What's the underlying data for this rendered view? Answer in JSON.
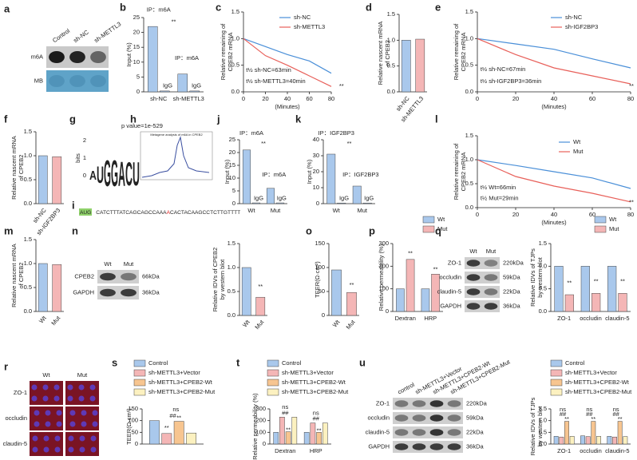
{
  "chart_data": [
    {
      "letter": "b",
      "type": "bar",
      "ylabel": [
        "Input (%)"
      ],
      "categories": [
        "sh-NC",
        "sh-METTL3"
      ],
      "series": [
        {
          "color": "#a9c8ec",
          "values": [
            22,
            6
          ]
        },
        {
          "color": "#a9c8ec",
          "values": [
            0.3,
            0.3
          ]
        }
      ],
      "ylim": [
        0,
        25
      ],
      "yticks": [
        0,
        5,
        10,
        15,
        20,
        25
      ],
      "annotations": [
        "IP：m6A",
        "IP：m6A",
        "IgG",
        "IgG",
        "**"
      ]
    },
    {
      "letter": "c",
      "type": "line",
      "ylabel": [
        "Relative remaining of",
        "CPEB2 mRNA"
      ],
      "xlabel": "(Minutes)",
      "x": [
        0,
        20,
        40,
        60,
        80
      ],
      "xlim": [
        0,
        80
      ],
      "xticks": [
        0,
        20,
        40,
        60,
        80
      ],
      "series": [
        {
          "name": "sh-NC",
          "color": "#4a8fd8",
          "values": [
            1,
            0.85,
            0.7,
            0.58,
            0.35
          ]
        },
        {
          "name": "sh-METTL3",
          "color": "#e8605a",
          "values": [
            1,
            0.68,
            0.5,
            0.3,
            0.1
          ]
        }
      ],
      "ylim": [
        0,
        1.5
      ],
      "yticks": [
        {
          "value": 0,
          "label": "0.0"
        },
        0.5,
        {
          "value": 1,
          "label": "1.0"
        },
        1.5
      ],
      "annotations": [
        "t½ sh-NC=63min",
        "t½ sh-METTL3=40min",
        "**"
      ]
    },
    {
      "letter": "d",
      "type": "bar",
      "ylabel": [
        "Relative nascent mRNA",
        "of CPEB2"
      ],
      "categories": [
        "sh-NC",
        "sh-METTL3"
      ],
      "series": [
        {
          "colors": [
            "#a9c8ec",
            "#f4b6b6"
          ],
          "values": [
            1,
            1.02
          ]
        }
      ],
      "ylim": [
        0,
        1.5
      ],
      "yticks": [
        {
          "value": 0,
          "label": "0.0"
        },
        0.5,
        {
          "value": 1,
          "label": "1.0"
        },
        1.5
      ],
      "annotations": []
    },
    {
      "letter": "e",
      "type": "line",
      "ylabel": [
        "Relative remaining of",
        "CPEB2 mRNA"
      ],
      "xlabel": "(Minutes)",
      "x": [
        0,
        20,
        40,
        60,
        80
      ],
      "xlim": [
        0,
        80
      ],
      "xticks": [
        0,
        20,
        40,
        60,
        80
      ],
      "series": [
        {
          "name": "sh-NC",
          "color": "#4a8fd8",
          "values": [
            1,
            0.9,
            0.8,
            0.62,
            0.45
          ]
        },
        {
          "name": "sh-IGF2BP3",
          "color": "#e8605a",
          "values": [
            1,
            0.7,
            0.45,
            0.3,
            0.15
          ]
        }
      ],
      "ylim": [
        0,
        1.5
      ],
      "yticks": [
        {
          "value": 0,
          "label": "0.0"
        },
        0.5,
        {
          "value": 1,
          "label": "1.0"
        },
        1.5
      ],
      "annotations": [
        "t½ sh-NC=67min",
        "t½ sh-IGF2BP3=36min",
        "**"
      ]
    },
    {
      "letter": "f",
      "type": "bar",
      "ylabel": [
        "Relative nascent mRNA",
        "of CPEB2"
      ],
      "categories": [
        "sh-NC",
        "sh-IGF2BP3"
      ],
      "series": [
        {
          "colors": [
            "#a9c8ec",
            "#f4b6b6"
          ],
          "values": [
            1,
            0.98
          ]
        }
      ],
      "ylim": [
        0,
        1.5
      ],
      "yticks": [
        {
          "value": 0,
          "label": "0.0"
        },
        0.5,
        {
          "value": 1,
          "label": "1.0"
        },
        1.5
      ],
      "annotations": []
    },
    {
      "letter": "j",
      "type": "bar",
      "ylabel": [
        "Input (%)"
      ],
      "categories": [
        "Wt",
        "Mut"
      ],
      "series": [
        {
          "color": "#a9c8ec",
          "values": [
            21,
            6
          ]
        },
        {
          "color": "#a9c8ec",
          "values": [
            0.3,
            0.3
          ]
        }
      ],
      "ylim": [
        0,
        25
      ],
      "yticks": [
        0,
        5,
        10,
        15,
        20,
        25
      ],
      "annotations": [
        "IP：m6A",
        "IP：m6A",
        "IgG",
        "IgG",
        "**"
      ]
    },
    {
      "letter": "k",
      "type": "bar",
      "ylabel": [
        "Input (%)"
      ],
      "categories": [
        "Wt",
        "Mut"
      ],
      "series": [
        {
          "color": "#a9c8ec",
          "values": [
            31,
            11
          ]
        },
        {
          "color": "#a9c8ec",
          "values": [
            0.4,
            0.4
          ]
        }
      ],
      "ylim": [
        0,
        40
      ],
      "yticks": [
        0,
        10,
        20,
        30,
        40
      ],
      "annotations": [
        "IP：IGF2BP3",
        "IP：IGF2BP3",
        "IgG",
        "IgG",
        "**"
      ]
    },
    {
      "letter": "l",
      "type": "line",
      "ylabel": [
        "Relative remaining of",
        "CPEB2 mRNA"
      ],
      "xlabel": "(Minutes)",
      "x": [
        0,
        20,
        40,
        60,
        80
      ],
      "xlim": [
        0,
        80
      ],
      "xticks": [
        0,
        20,
        40,
        60,
        80
      ],
      "series": [
        {
          "name": "Wt",
          "color": "#4a8fd8",
          "values": [
            1,
            0.88,
            0.75,
            0.62,
            0.4
          ]
        },
        {
          "name": "Mut",
          "color": "#e8605a",
          "values": [
            1,
            0.65,
            0.45,
            0.3,
            0.12
          ]
        }
      ],
      "ylim": [
        0,
        1.5
      ],
      "yticks": [
        {
          "value": 0,
          "label": "0.0"
        },
        0.5,
        {
          "value": 1,
          "label": "1.0"
        },
        1.5
      ],
      "annotations": [
        "t½ Wt=66min",
        "t½ Mut=29min",
        "**"
      ]
    },
    {
      "letter": "m",
      "type": "bar",
      "ylabel": [
        "Relative nascent mRNA",
        "of CPEB2"
      ],
      "categories": [
        "Wt",
        "Mut"
      ],
      "series": [
        {
          "colors": [
            "#a9c8ec",
            "#f4b6b6"
          ],
          "values": [
            1,
            0.98
          ]
        }
      ],
      "ylim": [
        0,
        1.5
      ],
      "yticks": [
        {
          "value": 0,
          "label": "0.0"
        },
        0.5,
        {
          "value": 1,
          "label": "1.0"
        },
        1.5
      ],
      "annotations": []
    },
    {
      "letter": "n",
      "type": "bar",
      "ylabel": [
        "Relative IDVs of CPEB2",
        "by western blot"
      ],
      "categories": [
        "Wt",
        "Mut"
      ],
      "series": [
        {
          "colors": [
            "#a9c8ec",
            "#f4b6b6"
          ],
          "values": [
            1,
            0.38
          ]
        }
      ],
      "ylim": [
        0,
        1.5
      ],
      "yticks": [
        {
          "value": 0,
          "label": "0.0"
        },
        0.5,
        {
          "value": 1,
          "label": "1.0"
        },
        1.5
      ],
      "annotations": [
        "**"
      ]
    },
    {
      "letter": "o",
      "type": "bar",
      "ylabel": [
        "TEER(Ω·cm²)"
      ],
      "categories": [
        "Wt",
        "Mut"
      ],
      "series": [
        {
          "colors": [
            "#a9c8ec",
            "#f4b6b6"
          ],
          "values": [
            95,
            48
          ]
        }
      ],
      "ylim": [
        0,
        150
      ],
      "yticks": [
        0,
        50,
        100,
        150
      ],
      "annotations": [
        "**"
      ]
    },
    {
      "letter": "p",
      "type": "bar",
      "ylabel": [
        "Relative permeability (%)"
      ],
      "categories": [
        "Dextran",
        "HRP"
      ],
      "series": [
        {
          "name": "Wt",
          "color": "#a9c8ec",
          "values": [
            100,
            100
          ]
        },
        {
          "name": "Mut",
          "color": "#f4b6b6",
          "values": [
            230,
            165
          ]
        }
      ],
      "ylim": [
        0,
        300
      ],
      "yticks": [
        0,
        100,
        200,
        300
      ],
      "annotations": [
        "**",
        "**"
      ]
    },
    {
      "letter": "q",
      "type": "bar",
      "ylabel": [
        "Relative IDVs of TJPs",
        "by western blot"
      ],
      "categories": [
        "ZO-1",
        "occludin",
        "claudin-5"
      ],
      "series": [
        {
          "name": "Wt",
          "color": "#a9c8ec",
          "values": [
            1,
            1,
            1
          ]
        },
        {
          "name": "Mut",
          "color": "#f4b6b6",
          "values": [
            0.37,
            0.4,
            0.4
          ]
        }
      ],
      "ylim": [
        0,
        1.5
      ],
      "yticks": [
        {
          "value": 0,
          "label": "0.0"
        },
        0.5,
        {
          "value": 1,
          "label": "1.0"
        },
        1.5
      ],
      "annotations": [
        "**",
        "**",
        "**"
      ]
    },
    {
      "letter": "s",
      "type": "bar",
      "ylabel": [
        "TEER(Ω·cm²)"
      ],
      "series": [
        {
          "name": "Control",
          "color": "#a9c8ec",
          "values": [
            100
          ]
        },
        {
          "name": "sh-METTL3+Vector",
          "color": "#f4b6b6",
          "values": [
            45
          ]
        },
        {
          "name": "sh-METTL3+CPEB2-Wt",
          "color": "#f7c590",
          "values": [
            97
          ]
        },
        {
          "name": "sh-METTL3+CPEB2-Mut",
          "color": "#fcf1c0",
          "values": [
            47
          ]
        }
      ],
      "ylim": [
        0,
        150
      ],
      "yticks": [
        0,
        50,
        100,
        150
      ],
      "annotations": [
        "##",
        "ns",
        "**",
        "**"
      ]
    },
    {
      "letter": "t",
      "type": "bar",
      "ylabel": [
        "Relative permeability (%)"
      ],
      "categories": [
        "Dextran",
        "HRP"
      ],
      "series": [
        {
          "name": "Control",
          "color": "#a9c8ec",
          "values": [
            100,
            100
          ]
        },
        {
          "name": "sh-METTL3+Vector",
          "color": "#f4b6b6",
          "values": [
            230,
            180
          ]
        },
        {
          "name": "sh-METTL3+CPEB2-Wt",
          "color": "#f7c590",
          "values": [
            105,
            100
          ]
        },
        {
          "name": "sh-METTL3+CPEB2-Mut",
          "color": "#fcf1c0",
          "values": [
            230,
            180
          ]
        }
      ],
      "ylim": [
        0,
        300
      ],
      "yticks": [
        0,
        100,
        200,
        300
      ],
      "annotations": [
        "##",
        "ns",
        "**",
        "##",
        "ns",
        "**"
      ]
    },
    {
      "letter": "u",
      "type": "bar",
      "ylabel": [
        "Relative IDVs of TJPs",
        "by western blot"
      ],
      "categories": [
        "ZO-1",
        "occludin",
        "claudin-5"
      ],
      "series": [
        {
          "name": "Control",
          "color": "#a9c8ec",
          "values": [
            0.33,
            0.35,
            0.33
          ]
        },
        {
          "name": "sh-METTL3+Vector",
          "color": "#f4b6b6",
          "values": [
            0.3,
            0.32,
            0.3
          ]
        },
        {
          "name": "sh-METTL3+CPEB2-Wt",
          "color": "#f7c590",
          "values": [
            0.97,
            0.97,
            0.97
          ]
        },
        {
          "name": "sh-METTL3+CPEB2-Mut",
          "color": "#fcf1c0",
          "values": [
            0.33,
            0.33,
            0.32
          ]
        }
      ],
      "ylim": [
        0,
        1.5
      ],
      "yticks": [
        {
          "value": 0,
          "label": "0.0"
        },
        0.5,
        {
          "value": 1,
          "label": "1.0"
        },
        1.5
      ],
      "annotations": [
        "##",
        "ns",
        "**",
        "##",
        "ns",
        "**",
        "##",
        "ns",
        "**"
      ]
    }
  ],
  "a": {
    "letter": "a",
    "lanes": [
      "Control",
      "sh-NC",
      "sh-METTL3"
    ],
    "rows": [
      "m6A",
      "MB"
    ]
  },
  "g": {
    "letter": "g",
    "title": "p value=1e-529",
    "ylabel": "bits",
    "yticks": [
      "0",
      "1",
      "2"
    ],
    "letters": [
      "A",
      "U",
      "G",
      "G",
      "A",
      "C",
      "U"
    ]
  },
  "h": {
    "letter": "h",
    "title": "Metagene analysis of m6A in CPEB2"
  },
  "i": {
    "letter": "i",
    "start": "AUG",
    "seq": [
      "CATCTTTATCAGCAGCCAAA",
      "A",
      "CACTACAAGCCTCTTGTTTT"
    ]
  },
  "n_blot": {
    "lanes": [
      "Wt",
      "Mut"
    ],
    "rows": [
      "CPEB2",
      "GAPDH"
    ],
    "sizes": [
      "66kDa",
      "36kDa"
    ]
  },
  "q_blot": {
    "lanes": [
      "Wt",
      "Mut"
    ],
    "rows": [
      "ZO-1",
      "occludin",
      "claudin-5",
      "GAPDH"
    ],
    "sizes": [
      "220kDa",
      "59kDa",
      "22kDa",
      "36kDa"
    ]
  },
  "u_blot": {
    "lanes": [
      "control",
      "sh-METTL3+Vector",
      "sh-METTL3+CPEB2-Wt",
      "sh-METTL3+CPEB2-Mut"
    ],
    "rows": [
      "ZO-1",
      "occludin",
      "claudin-5",
      "GAPDH"
    ],
    "sizes": [
      "220kDa",
      "59kDa",
      "22kDa",
      "36kDa"
    ]
  },
  "r": {
    "letter": "r",
    "cols": [
      "Wt",
      "Mut"
    ],
    "rows": [
      "ZO-1",
      "occludin",
      "claudin-5"
    ]
  }
}
